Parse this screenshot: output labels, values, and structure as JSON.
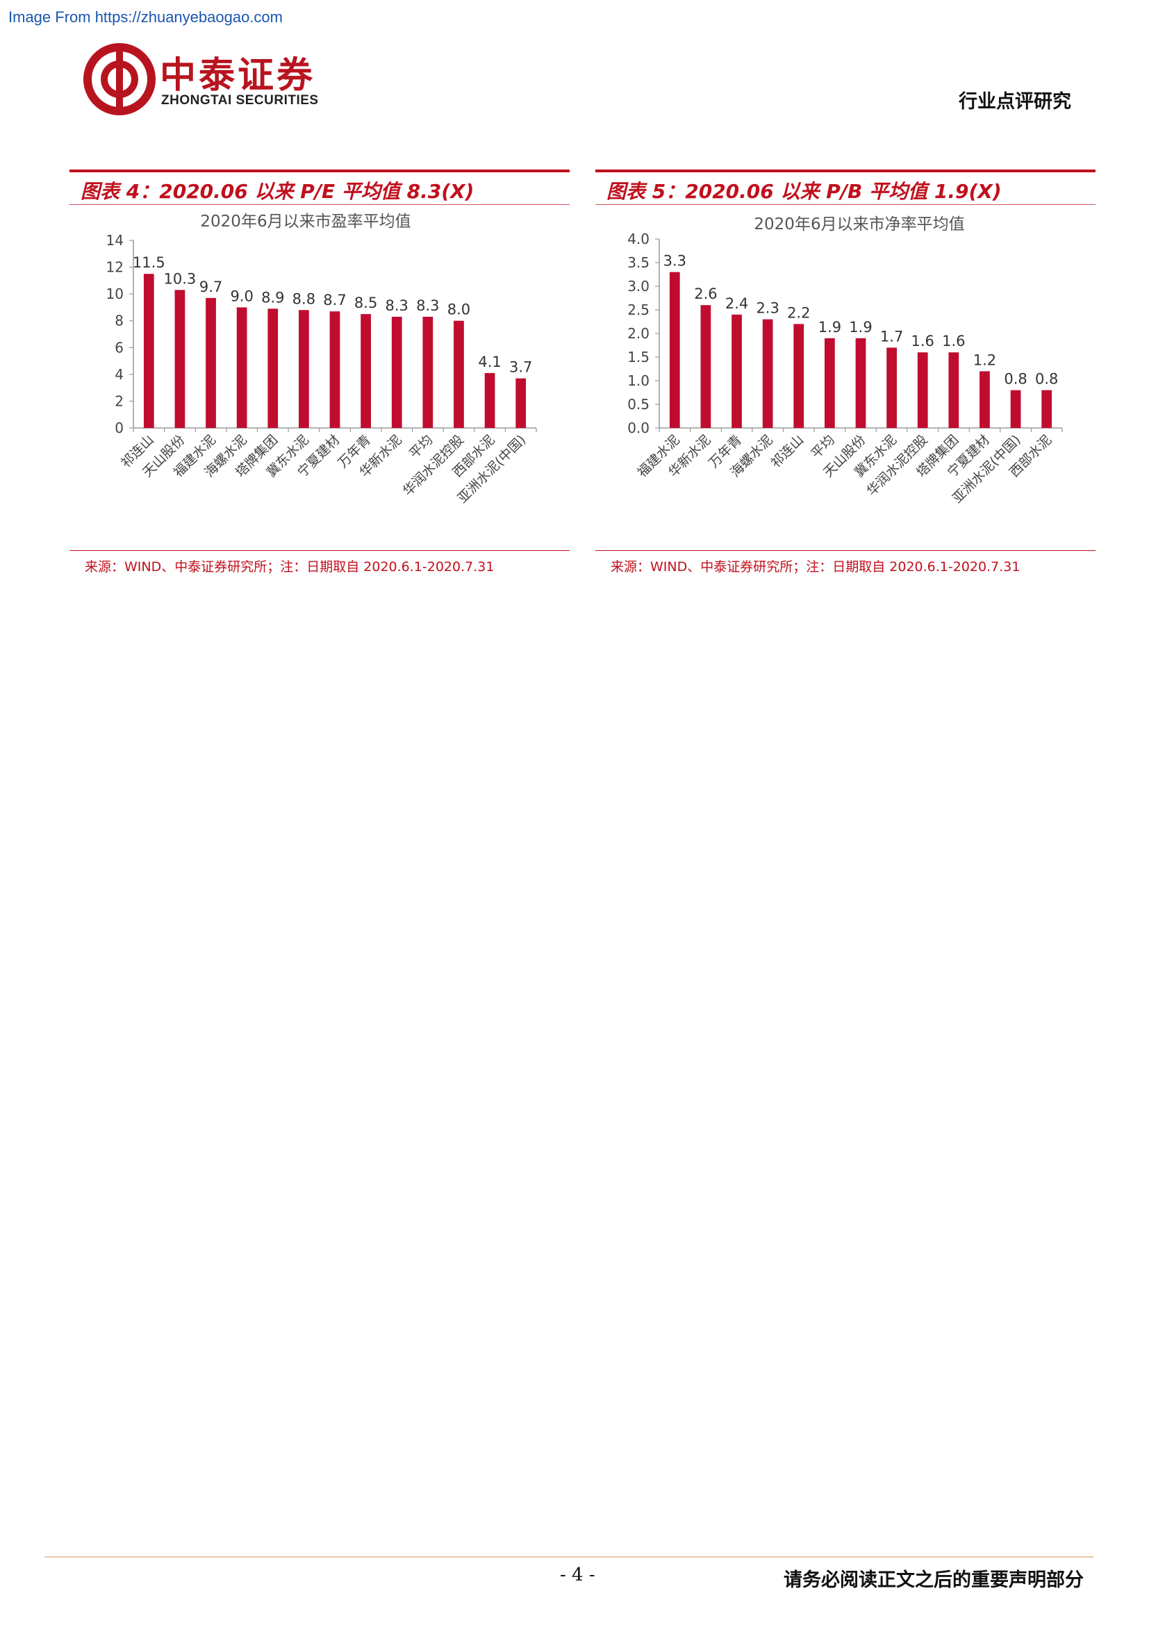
{
  "watermark": "Image From https://zhuanyebaogao.com",
  "header": {
    "logo_cn": "中泰证券",
    "logo_en": "ZHONGTAI SECURITIES",
    "category": "行业点评研究"
  },
  "colors": {
    "accent": "#c0101d",
    "bar": "#c00c2e"
  },
  "figures": [
    {
      "title": "图表 4：2020.06 以来 P/E 平均值 8.3(X)",
      "source": "来源：WIND、中泰证券研究所；注：日期取自 2020.6.1-2020.7.31"
    },
    {
      "title": "图表 5：2020.06 以来 P/B 平均值 1.9(X)",
      "source": "来源：WIND、中泰证券研究所；注：日期取自 2020.6.1-2020.7.31"
    }
  ],
  "chart_data": [
    {
      "type": "bar",
      "title": "2020年6月以来市盈率平均值",
      "categories": [
        "祁连山",
        "天山股份",
        "福建水泥",
        "海螺水泥",
        "塔牌集团",
        "冀东水泥",
        "宁夏建材",
        "万年青",
        "华新水泥",
        "平均",
        "华润水泥控股",
        "西部水泥",
        "亚洲水泥(中国)"
      ],
      "values": [
        11.5,
        10.3,
        9.7,
        9.0,
        8.9,
        8.8,
        8.7,
        8.5,
        8.3,
        8.3,
        8.0,
        4.1,
        3.7
      ],
      "value_labels": [
        "11.5",
        "10.3",
        "9.7",
        "9.0",
        "8.9",
        "8.8",
        "8.7",
        "8.5",
        "8.3",
        "8.3",
        "8.0",
        "4.1",
        "3.7"
      ],
      "ylim": [
        0,
        14
      ],
      "yticks": [
        "0",
        "2",
        "4",
        "6",
        "8",
        "10",
        "12",
        "14"
      ],
      "ytick_values": [
        0,
        2,
        4,
        6,
        8,
        10,
        12,
        14
      ]
    },
    {
      "type": "bar",
      "title": "2020年6月以来市净率平均值",
      "categories": [
        "福建水泥",
        "华新水泥",
        "万年青",
        "海螺水泥",
        "祁连山",
        "平均",
        "天山股份",
        "冀东水泥",
        "华润水泥控股",
        "塔牌集团",
        "宁夏建材",
        "亚洲水泥(中国)",
        "西部水泥"
      ],
      "values": [
        3.3,
        2.6,
        2.4,
        2.3,
        2.2,
        1.9,
        1.9,
        1.7,
        1.6,
        1.6,
        1.2,
        0.8,
        0.8
      ],
      "value_labels": [
        "3.3",
        "2.6",
        "2.4",
        "2.3",
        "2.2",
        "1.9",
        "1.9",
        "1.7",
        "1.6",
        "1.6",
        "1.2",
        "0.8",
        "0.8"
      ],
      "ylim": [
        0,
        4
      ],
      "yticks": [
        "0.0",
        "0.5",
        "1.0",
        "1.5",
        "2.0",
        "2.5",
        "3.0",
        "3.5",
        "4.0"
      ],
      "ytick_values": [
        0,
        0.5,
        1.0,
        1.5,
        2.0,
        2.5,
        3.0,
        3.5,
        4.0
      ]
    }
  ],
  "footer": {
    "page_number": "- 4 -",
    "notice": "请务必阅读正文之后的重要声明部分"
  }
}
